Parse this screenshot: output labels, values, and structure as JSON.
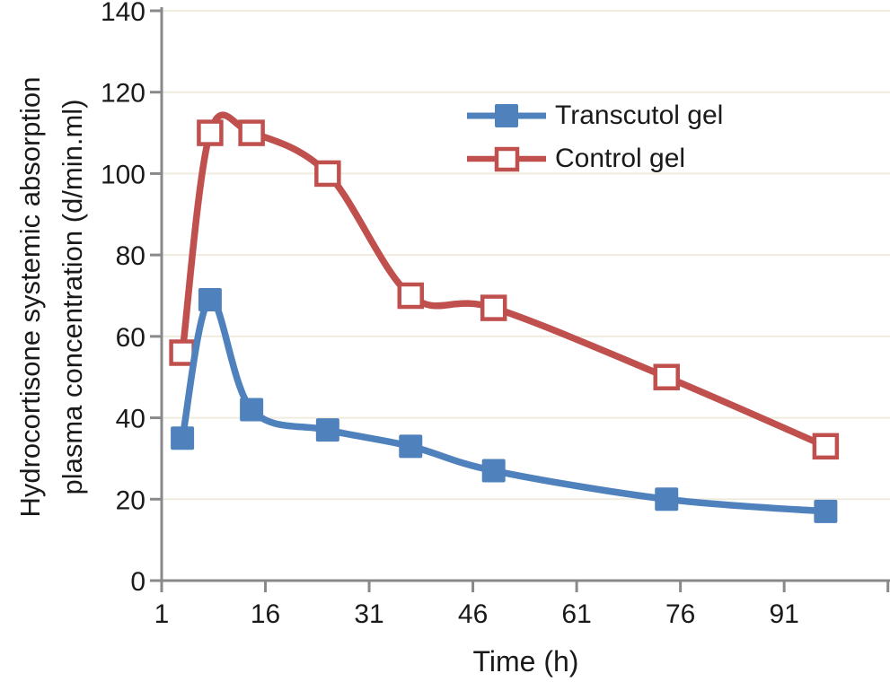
{
  "chart_data": {
    "type": "line",
    "title": "",
    "xlabel": "Time (h)",
    "ylabel": "Hydrocortisone systemic absorption plasma concentration (d/min.ml)",
    "ylabel_lines": [
      "Hydrocortisone systemic absorption",
      "plasma concentration (d/min.ml)"
    ],
    "x": [
      4,
      8,
      14,
      25,
      37,
      49,
      74,
      97
    ],
    "series": [
      {
        "name": "Transcutol gel",
        "color": "#4f81bd",
        "marker": "filled-square",
        "values": [
          35,
          69,
          42,
          37,
          33,
          27,
          20,
          17
        ]
      },
      {
        "name": "Control gel",
        "color": "#c0504d",
        "marker": "open-square",
        "values": [
          56,
          110,
          110,
          100,
          70,
          67,
          50,
          33
        ]
      }
    ],
    "xticks": [
      1,
      16,
      31,
      46,
      61,
      76,
      91
    ],
    "xticks_unlabeled": [
      106
    ],
    "yticks": [
      0,
      20,
      40,
      60,
      80,
      100,
      120,
      140
    ],
    "xlim": [
      1,
      106.3
    ],
    "ylim": [
      0,
      140
    ],
    "grid": "horizontal",
    "line_style": "smooth",
    "legend_position": "upper-middle"
  },
  "colors": {
    "axis": "#898989",
    "gridline": "#efecdf",
    "text": "#1a1a1a",
    "background": "#ffffff"
  }
}
